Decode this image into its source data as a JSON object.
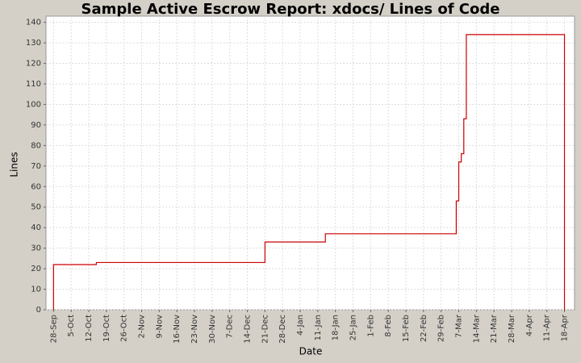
{
  "chart_data": {
    "type": "step",
    "title": "Sample Active Escrow Report: xdocs/ Lines of Code",
    "x_label": "Date",
    "y_label": "Lines",
    "x": [
      "28-Sep",
      "28-Sep",
      "15-Oct",
      "21-Dec",
      "14-Jan",
      "6-Mar",
      "7-Mar",
      "8-Mar",
      "9-Mar",
      "10-Mar",
      "18-Apr"
    ],
    "series": [
      {
        "name": "Lines",
        "color": "#cc0000",
        "values": [
          0,
          22,
          23,
          33,
          37,
          53,
          72,
          76,
          93,
          134,
          0
        ]
      }
    ],
    "xlim": [
      "25-Sep",
      "22-Apr"
    ],
    "xticks": [
      "28-Sep",
      "5-Oct",
      "12-Oct",
      "19-Oct",
      "26-Oct",
      "2-Nov",
      "9-Nov",
      "16-Nov",
      "23-Nov",
      "30-Nov",
      "7-Dec",
      "14-Dec",
      "21-Dec",
      "28-Dec",
      "4-Jan",
      "11-Jan",
      "18-Jan",
      "25-Jan",
      "1-Feb",
      "8-Feb",
      "15-Feb",
      "22-Feb",
      "29-Feb",
      "7-Mar",
      "14-Mar",
      "21-Mar",
      "28-Mar",
      "4-Apr",
      "11-Apr",
      "18-Apr"
    ],
    "ylim": [
      0,
      143
    ],
    "yticks": [
      0,
      10,
      20,
      30,
      40,
      50,
      60,
      70,
      80,
      90,
      100,
      110,
      120,
      130,
      140
    ],
    "grid": true
  }
}
